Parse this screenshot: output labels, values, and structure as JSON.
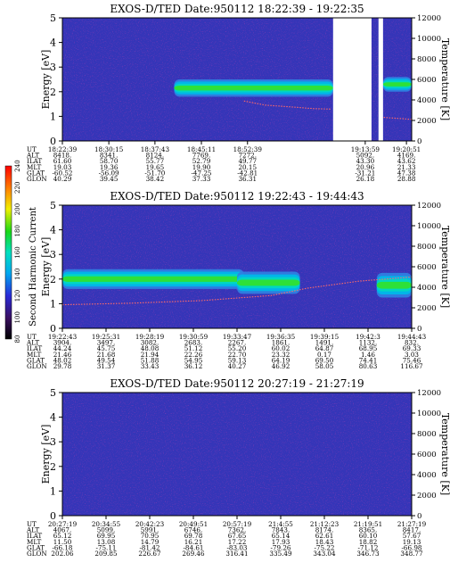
{
  "chart_data": [
    {
      "type": "heatmap",
      "title": "EXOS-D/TED   Date:950112   18:22:39 - 19:22:35",
      "ylabel": "Energy [eV]",
      "ylabel_right": "Temperature [K]",
      "ylim": [
        0,
        5
      ],
      "ylim_right": [
        0,
        12000
      ],
      "yticks": [
        "0",
        "1",
        "2",
        "3",
        "4",
        "5"
      ],
      "yticks_right": [
        "0",
        "2000",
        "4000",
        "6000",
        "8000",
        "10000",
        "12000"
      ],
      "data_gaps": [
        [
          0.775,
          0.885
        ],
        [
          0.905,
          0.918
        ]
      ],
      "bands": [
        {
          "x0": 0.32,
          "x1": 0.775,
          "peak_eV": 2.15,
          "width_eV": 0.35
        },
        {
          "x0": 0.918,
          "x1": 1.0,
          "peak_eV": 2.3,
          "width_eV": 0.3
        }
      ],
      "temperature_trace": [
        [
          0.52,
          3900
        ],
        [
          0.58,
          3500
        ],
        [
          0.66,
          3300
        ],
        [
          0.72,
          3150
        ],
        [
          0.77,
          3100
        ],
        [
          0.92,
          2300
        ],
        [
          0.96,
          2200
        ],
        [
          1.0,
          2100
        ]
      ],
      "ut_table": {
        "row_labels": [
          "UT",
          "ALT",
          "ILAT",
          "MLT",
          "GLAT",
          "GLON"
        ],
        "columns": [
          {
            "x": 0.0,
            "values": [
              "18:22:39",
              "8418.",
              "61.60",
              "19.03",
              "-60.52",
              "40.29"
            ]
          },
          {
            "x": 0.133,
            "values": [
              "18:30:15",
              "8341.",
              "58.70",
              "19.36",
              "-56.09",
              "39.45"
            ]
          },
          {
            "x": 0.265,
            "values": [
              "18:37:43",
              "8124.",
              "55.77",
              "19.65",
              "-51.70",
              "38.42"
            ]
          },
          {
            "x": 0.398,
            "values": [
              "18:45:11",
              "7769.",
              "52.79",
              "19.90",
              "-47.25",
              "37.33"
            ]
          },
          {
            "x": 0.53,
            "values": [
              "18:52:39",
              "7272.",
              "49.77",
              "20.15",
              "-42.81",
              "36.31"
            ]
          },
          {
            "x": 0.867,
            "values": [
              "19:13:59",
              "5092.",
              "43.30",
              "20.96",
              "-31.21",
              "26.18"
            ]
          },
          {
            "x": 0.985,
            "values": [
              "19:20:51",
              "4169.",
              "43.62",
              "21.33",
              "47.38",
              "28.88"
            ]
          }
        ]
      }
    },
    {
      "type": "heatmap",
      "title": "EXOS-D/TED   Date:950112   19:22:43 - 19:44:43",
      "ylabel": "Energy [eV]",
      "ylabel_right": "Temperature [K]",
      "ylim": [
        0,
        5
      ],
      "ylim_right": [
        0,
        12000
      ],
      "yticks": [
        "0",
        "1",
        "2",
        "3",
        "4",
        "5"
      ],
      "yticks_right": [
        "0",
        "2000",
        "4000",
        "6000",
        "8000",
        "10000",
        "12000"
      ],
      "bands": [
        {
          "x0": 0.0,
          "x1": 0.52,
          "peak_eV": 2.0,
          "width_eV": 0.4
        },
        {
          "x0": 0.5,
          "x1": 0.68,
          "peak_eV": 1.85,
          "width_eV": 0.45
        },
        {
          "x0": 0.9,
          "x1": 1.0,
          "peak_eV": 1.75,
          "width_eV": 0.5
        }
      ],
      "temperature_trace": [
        [
          0.0,
          2300
        ],
        [
          0.2,
          2450
        ],
        [
          0.4,
          2700
        ],
        [
          0.6,
          3200
        ],
        [
          0.7,
          3900
        ],
        [
          0.85,
          4600
        ],
        [
          1.0,
          5000
        ]
      ],
      "colorbar": {
        "label": "Second Harmonic Current",
        "ticks": [
          "80",
          "100",
          "120",
          "140",
          "160",
          "180",
          "200",
          "220",
          "240"
        ]
      },
      "ut_table": {
        "row_labels": [
          "UT",
          "ALT",
          "ILAT",
          "MLT",
          "GLAT",
          "GLON"
        ],
        "columns": [
          {
            "x": 0.0,
            "values": [
              "19:22:43",
              "3904.",
              "44.24",
              "21.46",
              "48.02",
              "29.78"
            ]
          },
          {
            "x": 0.125,
            "values": [
              "19:25:31",
              "3497.",
              "45.75",
              "21.68",
              "49.54",
              "31.37"
            ]
          },
          {
            "x": 0.25,
            "values": [
              "19:28:19",
              "3082.",
              "48.08",
              "21.94",
              "51.88",
              "33.43"
            ]
          },
          {
            "x": 0.375,
            "values": [
              "19:30:59",
              "2683.",
              "51.12",
              "22.26",
              "54.95",
              "36.12"
            ]
          },
          {
            "x": 0.5,
            "values": [
              "19:33:47",
              "2267.",
              "55.20",
              "22.70",
              "59.13",
              "40.27"
            ]
          },
          {
            "x": 0.625,
            "values": [
              "19:36:35",
              "1861.",
              "60.02",
              "23.32",
              "64.19",
              "46.92"
            ]
          },
          {
            "x": 0.75,
            "values": [
              "19:39:15",
              "1491.",
              "64.87",
              "0.17",
              "69.50",
              "58.05"
            ]
          },
          {
            "x": 0.875,
            "values": [
              "19:42:3",
              "1132.",
              "68.95",
              "1.46",
              "74.41",
              "80.63"
            ]
          },
          {
            "x": 1.0,
            "values": [
              "19:44:43",
              "832.",
              "69.33",
              "3.03",
              "75.46",
              "116.67"
            ]
          }
        ]
      }
    },
    {
      "type": "heatmap",
      "title": "EXOS-D/TED   Date:950112   20:27:19 - 21:27:19",
      "ylabel": "Energy [eV]",
      "ylabel_right": "Temperature [K]",
      "ylim": [
        0,
        5
      ],
      "ylim_right": [
        0,
        12000
      ],
      "yticks": [
        "0",
        "1",
        "2",
        "3",
        "4",
        "5"
      ],
      "yticks_right": [
        "0",
        "2000",
        "4000",
        "6000",
        "8000",
        "10000",
        "12000"
      ],
      "bands": [],
      "temperature_trace": [],
      "ut_table": {
        "row_labels": [
          "UT",
          "ALT",
          "ILAT",
          "MLT",
          "GLAT",
          "GLON"
        ],
        "columns": [
          {
            "x": 0.0,
            "values": [
              "20:27:19",
              "4067.",
              "65.12",
              "11.50",
              "-66.18",
              "202.06"
            ]
          },
          {
            "x": 0.125,
            "values": [
              "20:34:55",
              "5099.",
              "69.95",
              "13.08",
              "-75.11",
              "209.85"
            ]
          },
          {
            "x": 0.25,
            "values": [
              "20:42:23",
              "5991.",
              "70.95",
              "14.79",
              "-81.42",
              "226.67"
            ]
          },
          {
            "x": 0.375,
            "values": [
              "20:49:51",
              "6746.",
              "69.78",
              "16.21",
              "-84.61",
              "269.46"
            ]
          },
          {
            "x": 0.5,
            "values": [
              "20:57:19",
              "7362.",
              "67.65",
              "17.22",
              "-83.03",
              "316.41"
            ]
          },
          {
            "x": 0.625,
            "values": [
              "21:4:55",
              "7843.",
              "65.14",
              "17.93",
              "-79.26",
              "335.49"
            ]
          },
          {
            "x": 0.75,
            "values": [
              "21:12:23",
              "8174.",
              "62.61",
              "18.43",
              "-75.22",
              "343.04"
            ]
          },
          {
            "x": 0.875,
            "values": [
              "21:19:51",
              "8365.",
              "60.10",
              "18.82",
              "-71.12",
              "346.73"
            ]
          },
          {
            "x": 1.0,
            "values": [
              "21:27:19",
              "8417.",
              "57.67",
              "19.13",
              "-66.98",
              "348.77"
            ]
          }
        ]
      }
    }
  ]
}
